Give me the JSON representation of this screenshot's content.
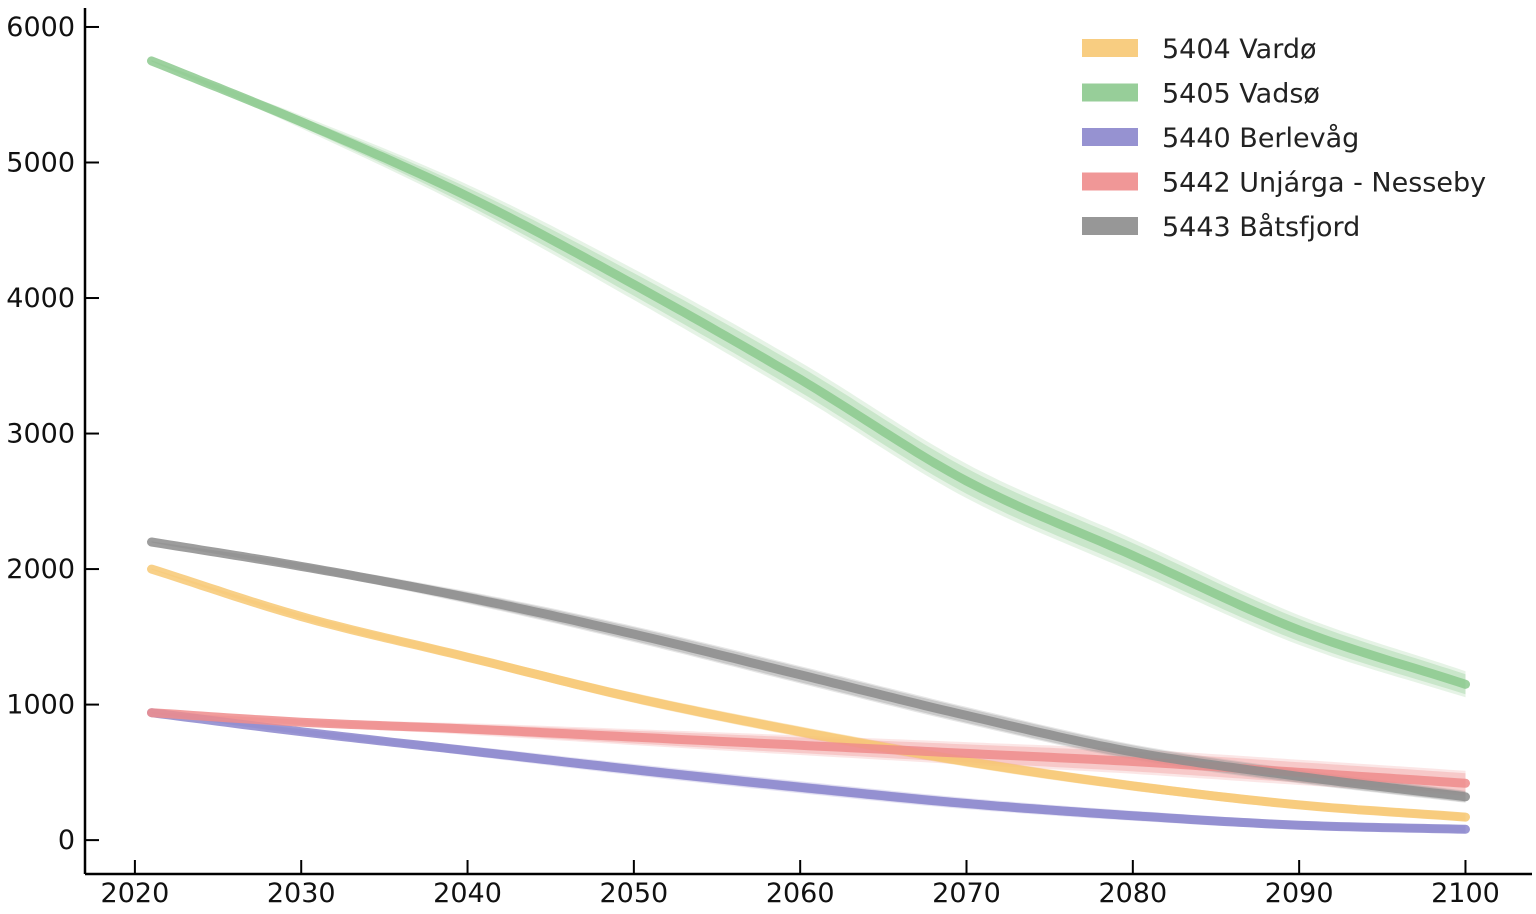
{
  "chart_data": {
    "type": "line",
    "title": "",
    "xlabel": "",
    "ylabel": "",
    "xlim": [
      2017,
      2104
    ],
    "ylim": [
      -250,
      6140
    ],
    "x_ticks": [
      2020,
      2030,
      2040,
      2050,
      2060,
      2070,
      2080,
      2090,
      2100
    ],
    "y_ticks": [
      0,
      1000,
      2000,
      3000,
      4000,
      5000,
      6000
    ],
    "grid": false,
    "legend_position": "top-right",
    "x": [
      2021,
      2030,
      2040,
      2050,
      2060,
      2070,
      2080,
      2090,
      2100
    ],
    "series": [
      {
        "name": "5404 Vardø",
        "color": "#f7c873",
        "values": [
          2000,
          1650,
          1350,
          1050,
          800,
          580,
          400,
          260,
          170
        ],
        "band": [
          0.04,
          0.07
        ]
      },
      {
        "name": "5405 Vadsø",
        "color": "#8cc98e",
        "values": [
          5750,
          5300,
          4750,
          4100,
          3400,
          2650,
          2100,
          1550,
          1150
        ],
        "band": [
          0.025,
          0.07
        ]
      },
      {
        "name": "5440 Berlevåg",
        "color": "#8b86cc",
        "values": [
          940,
          800,
          660,
          520,
          390,
          270,
          180,
          110,
          80
        ],
        "band": [
          0.08,
          0.18
        ]
      },
      {
        "name": "5442 Unjárga - Nesseby",
        "color": "#ee8c8c",
        "values": [
          940,
          870,
          820,
          760,
          700,
          640,
          580,
          500,
          420
        ],
        "band": [
          0.08,
          0.18
        ]
      },
      {
        "name": "5443 Båtsfjord",
        "color": "#8c8c8c",
        "values": [
          2200,
          2020,
          1790,
          1520,
          1220,
          920,
          650,
          470,
          320
        ],
        "band": [
          0.04,
          0.09
        ]
      }
    ]
  }
}
